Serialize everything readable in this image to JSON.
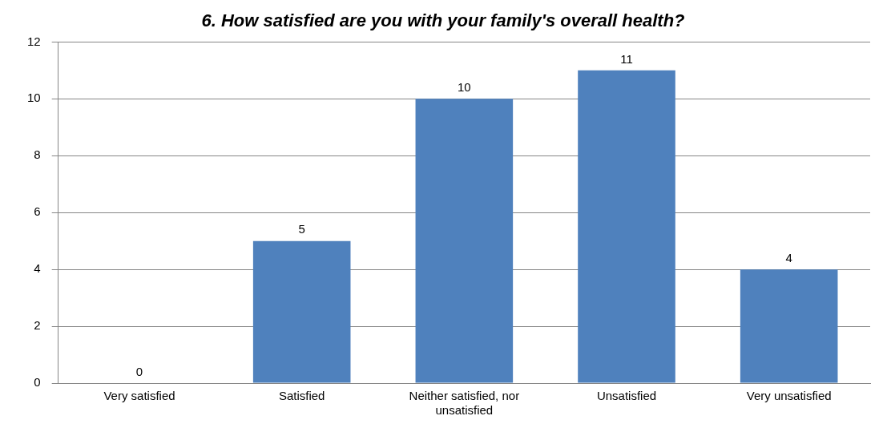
{
  "chart_data": {
    "type": "bar",
    "title": "6. How satisfied are you with your family's overall health?",
    "categories": [
      "Very satisfied",
      "Satisfied",
      "Neither satisfied, nor unsatisfied",
      "Unsatisfied",
      "Very unsatisfied"
    ],
    "values": [
      0,
      5,
      10,
      11,
      4
    ],
    "color": "#4f81bd",
    "ylim": [
      0,
      12
    ],
    "yticks": [
      0,
      2,
      4,
      6,
      8,
      10,
      12
    ],
    "grid": "y",
    "data_labels": true
  }
}
